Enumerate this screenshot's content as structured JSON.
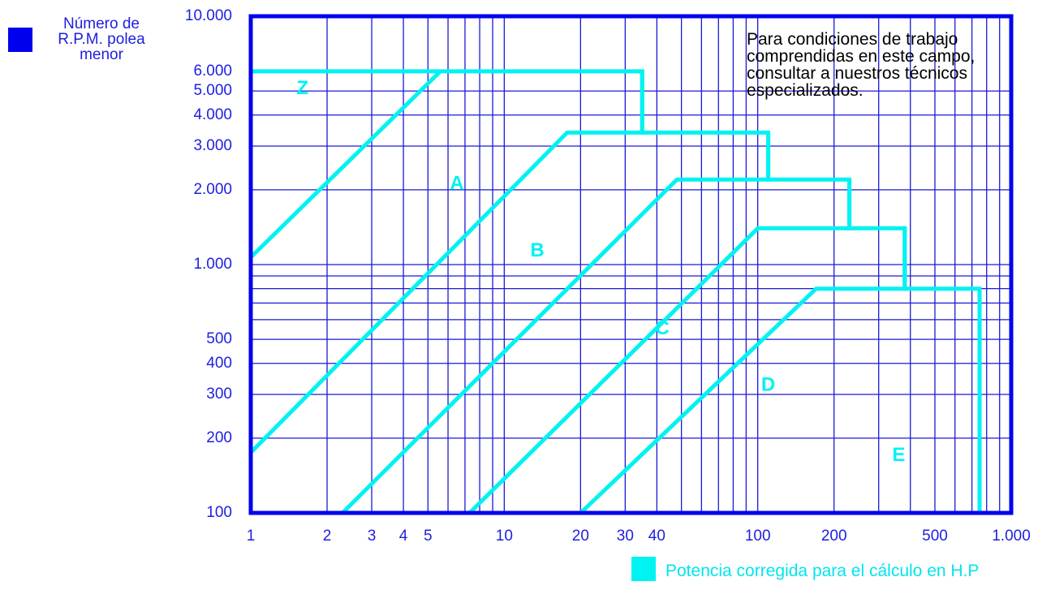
{
  "colors": {
    "frame": "#0000ee",
    "grid": "#1a1ad6",
    "zone": "#00f2f2",
    "label": "#2020e0",
    "note": "#000000"
  },
  "legend": {
    "y_title": "Número de R.P.M. polea menor",
    "x_title": "Potencia corregida para el cálculo en H.P"
  },
  "note": "Para condiciones de trabajo comprendidas en este campo, consultar a nuestros técnicos especializados.",
  "chart_data": {
    "type": "line",
    "xscale": "log",
    "yscale": "log",
    "xlim": [
      1,
      1000
    ],
    "ylim": [
      100,
      10000
    ],
    "grid": true,
    "x_ticks": [
      1,
      2,
      3,
      4,
      5,
      10,
      20,
      30,
      40,
      100,
      200,
      500,
      1000
    ],
    "x_tick_labels": [
      "1",
      "2",
      "3",
      "4",
      "5",
      "10",
      "20",
      "30",
      "40",
      "100",
      "200",
      "500",
      "1.000"
    ],
    "y_ticks": [
      100,
      200,
      300,
      400,
      500,
      1000,
      2000,
      3000,
      4000,
      5000,
      6000,
      10000
    ],
    "y_tick_labels": [
      "100",
      "200",
      "300",
      "400",
      "500",
      "1.000",
      "2.000",
      "3.000",
      "4.000",
      "5.000",
      "6.000",
      "10.000"
    ],
    "x_grid": [
      2,
      3,
      4,
      5,
      6,
      7,
      8,
      9,
      10,
      20,
      30,
      40,
      50,
      60,
      70,
      80,
      90,
      100,
      200,
      300,
      400,
      500,
      600,
      700,
      800,
      900
    ],
    "y_grid": [
      200,
      300,
      400,
      500,
      600,
      700,
      800,
      900,
      1000,
      2000,
      3000,
      4000,
      5000
    ],
    "boundaries": [
      {
        "name": "Z-A",
        "points": [
          [
            1,
            1070
          ],
          [
            5.6,
            6000
          ]
        ]
      },
      {
        "name": "A-B",
        "points": [
          [
            1,
            175
          ],
          [
            17.7,
            3400
          ],
          [
            35,
            3400
          ],
          [
            35,
            6000
          ]
        ]
      },
      {
        "name": "B-C",
        "points": [
          [
            2.3,
            100
          ],
          [
            48,
            2200
          ],
          [
            110,
            2200
          ],
          [
            110,
            3400
          ]
        ]
      },
      {
        "name": "C-D",
        "points": [
          [
            7.3,
            100
          ],
          [
            100,
            1400
          ],
          [
            230,
            1400
          ],
          [
            230,
            2200
          ]
        ]
      },
      {
        "name": "D-E",
        "points": [
          [
            20,
            100
          ],
          [
            170,
            800
          ],
          [
            380,
            800
          ],
          [
            380,
            1400
          ]
        ]
      },
      {
        "name": "outer",
        "points": [
          [
            1,
            6000
          ],
          [
            35,
            6000
          ],
          [
            35,
            3400
          ],
          [
            110,
            3400
          ],
          [
            110,
            2200
          ],
          [
            230,
            2200
          ],
          [
            230,
            1400
          ],
          [
            380,
            1400
          ],
          [
            380,
            800
          ],
          [
            750,
            800
          ],
          [
            750,
            100
          ]
        ]
      }
    ],
    "zones": [
      {
        "label": "Z",
        "x": 1.6,
        "y": 5100
      },
      {
        "label": "A",
        "x": 6.5,
        "y": 2100
      },
      {
        "label": "B",
        "x": 13.5,
        "y": 1130
      },
      {
        "label": "C",
        "x": 42,
        "y": 550
      },
      {
        "label": "D",
        "x": 110,
        "y": 325
      },
      {
        "label": "E",
        "x": 360,
        "y": 170
      }
    ]
  }
}
